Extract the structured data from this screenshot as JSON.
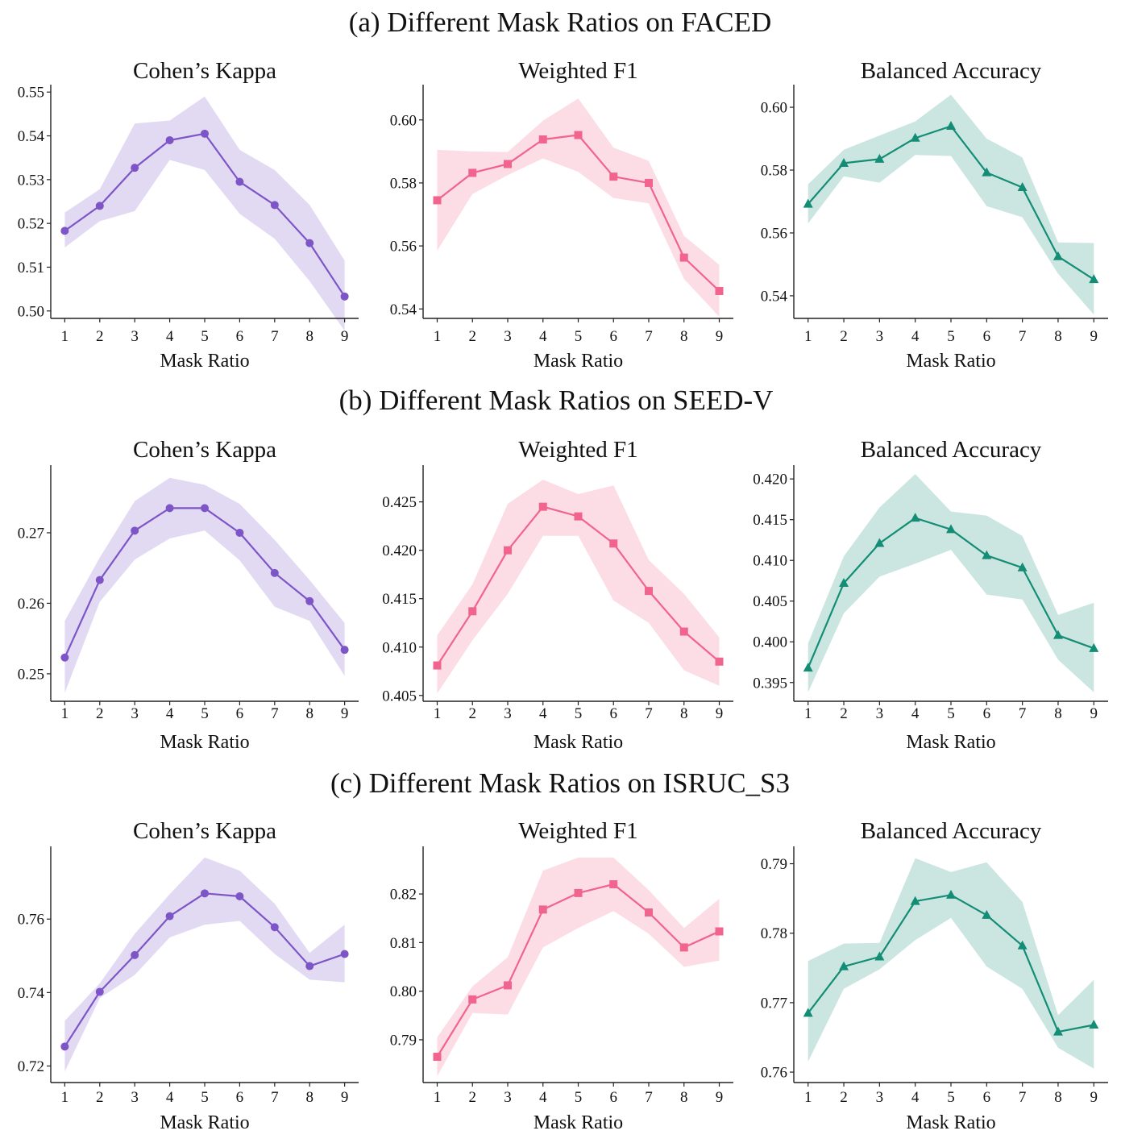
{
  "figure": {
    "x_label": "Mask Ratio",
    "colors": {
      "purple": "#7d55c7",
      "pink": "#f0648e",
      "teal": "#138d75"
    },
    "markers": {
      "purple": "circle",
      "pink": "square",
      "teal": "triangle"
    }
  },
  "chart_data": [
    {
      "section": "(a) Different Mask Ratios on FACED",
      "panels": [
        {
          "type": "line",
          "title": "Cohen’s Kappa",
          "xlabel": "Mask Ratio",
          "ylabel": "",
          "color": "purple",
          "marker": "circle",
          "x": [
            1,
            2,
            3,
            4,
            5,
            6,
            7,
            8,
            9
          ],
          "mean": [
            0.5183,
            0.524,
            0.5327,
            0.539,
            0.5405,
            0.5295,
            0.5242,
            0.5155,
            0.5033
          ],
          "lower": [
            0.5145,
            0.5205,
            0.5228,
            0.5345,
            0.5322,
            0.5222,
            0.5165,
            0.5068,
            0.4955
          ],
          "upper": [
            0.5225,
            0.5278,
            0.5428,
            0.5435,
            0.549,
            0.5368,
            0.5322,
            0.5242,
            0.5115
          ],
          "xlim": [
            0.6,
            9.4
          ],
          "ylim": [
            0.4983,
            0.5517
          ],
          "yticks": [
            0.5,
            0.51,
            0.52,
            0.53,
            0.54,
            0.55
          ],
          "ytick_labels": [
            "0.50",
            "0.51",
            "0.52",
            "0.53",
            "0.54",
            "0.55"
          ],
          "xtick_labels": [
            "1",
            "2",
            "3",
            "4",
            "5",
            "6",
            "7",
            "8",
            "9"
          ]
        },
        {
          "type": "line",
          "title": "Weighted F1",
          "xlabel": "Mask Ratio",
          "ylabel": "",
          "color": "pink",
          "marker": "square",
          "x": [
            1,
            2,
            3,
            4,
            5,
            6,
            7,
            8,
            9
          ],
          "mean": [
            0.5745,
            0.5832,
            0.586,
            0.5938,
            0.5952,
            0.582,
            0.58,
            0.5563,
            0.5457
          ],
          "lower": [
            0.5585,
            0.5765,
            0.5825,
            0.5878,
            0.5835,
            0.5752,
            0.5735,
            0.5495,
            0.5375
          ],
          "upper": [
            0.5905,
            0.59,
            0.5898,
            0.5998,
            0.6068,
            0.5912,
            0.587,
            0.5632,
            0.554
          ],
          "xlim": [
            0.6,
            9.4
          ],
          "ylim": [
            0.537,
            0.6112
          ],
          "yticks": [
            0.54,
            0.56,
            0.58,
            0.6
          ],
          "ytick_labels": [
            "0.54",
            "0.56",
            "0.58",
            "0.60"
          ],
          "xtick_labels": [
            "1",
            "2",
            "3",
            "4",
            "5",
            "6",
            "7",
            "8",
            "9"
          ]
        },
        {
          "type": "line",
          "title": "Balanced Accuracy",
          "xlabel": "Mask Ratio",
          "ylabel": "",
          "color": "teal",
          "marker": "triangle",
          "x": [
            1,
            2,
            3,
            4,
            5,
            6,
            7,
            8,
            9
          ],
          "mean": [
            0.5692,
            0.5822,
            0.5835,
            0.5902,
            0.594,
            0.5792,
            0.5745,
            0.5525,
            0.5452
          ],
          "lower": [
            0.563,
            0.578,
            0.576,
            0.5848,
            0.5845,
            0.5685,
            0.565,
            0.547,
            0.534
          ],
          "upper": [
            0.5755,
            0.5865,
            0.591,
            0.5955,
            0.604,
            0.59,
            0.584,
            0.557,
            0.5568
          ],
          "xlim": [
            0.6,
            9.4
          ],
          "ylim": [
            0.5328,
            0.6072
          ],
          "yticks": [
            0.54,
            0.56,
            0.58,
            0.6
          ],
          "ytick_labels": [
            "0.54",
            "0.56",
            "0.58",
            "0.60"
          ],
          "xtick_labels": [
            "1",
            "2",
            "3",
            "4",
            "5",
            "6",
            "7",
            "8",
            "9"
          ]
        }
      ]
    },
    {
      "section": "(b) Different Mask Ratios on SEED-V",
      "panels": [
        {
          "type": "line",
          "title": "Cohen’s Kappa",
          "xlabel": "Mask Ratio",
          "ylabel": "",
          "color": "purple",
          "marker": "circle",
          "x": [
            1,
            2,
            3,
            4,
            5,
            6,
            7,
            8,
            9
          ],
          "mean": [
            0.2523,
            0.2633,
            0.2703,
            0.2735,
            0.2735,
            0.27,
            0.2643,
            0.2603,
            0.2534
          ],
          "lower": [
            0.2473,
            0.2602,
            0.2662,
            0.2692,
            0.2703,
            0.2661,
            0.2595,
            0.2575,
            0.2497
          ],
          "upper": [
            0.2575,
            0.2665,
            0.2745,
            0.2778,
            0.2768,
            0.2741,
            0.269,
            0.2633,
            0.2572
          ],
          "xlim": [
            0.6,
            9.4
          ],
          "ylim": [
            0.2461,
            0.2796
          ],
          "yticks": [
            0.25,
            0.26,
            0.27
          ],
          "ytick_labels": [
            "0.25",
            "0.26",
            "0.27"
          ],
          "xtick_labels": [
            "1",
            "2",
            "3",
            "4",
            "5",
            "6",
            "7",
            "8",
            "9"
          ]
        },
        {
          "type": "line",
          "title": "Weighted F1",
          "xlabel": "Mask Ratio",
          "ylabel": "",
          "color": "pink",
          "marker": "square",
          "x": [
            1,
            2,
            3,
            4,
            5,
            6,
            7,
            8,
            9
          ],
          "mean": [
            0.4081,
            0.4137,
            0.42,
            0.4245,
            0.4235,
            0.4207,
            0.4158,
            0.4116,
            0.4085
          ],
          "lower": [
            0.4052,
            0.4107,
            0.4155,
            0.4215,
            0.4215,
            0.4148,
            0.4125,
            0.4076,
            0.406
          ],
          "upper": [
            0.4112,
            0.4165,
            0.4248,
            0.4273,
            0.4258,
            0.4267,
            0.419,
            0.4155,
            0.411
          ],
          "xlim": [
            0.6,
            9.4
          ],
          "ylim": [
            0.4044,
            0.4288
          ],
          "yticks": [
            0.405,
            0.41,
            0.415,
            0.42,
            0.425
          ],
          "ytick_labels": [
            "0.405",
            "0.410",
            "0.415",
            "0.420",
            "0.425"
          ],
          "xtick_labels": [
            "1",
            "2",
            "3",
            "4",
            "5",
            "6",
            "7",
            "8",
            "9"
          ]
        },
        {
          "type": "line",
          "title": "Balanced Accuracy",
          "xlabel": "Mask Ratio",
          "ylabel": "",
          "color": "teal",
          "marker": "triangle",
          "x": [
            1,
            2,
            3,
            4,
            5,
            6,
            7,
            8,
            9
          ],
          "mean": [
            0.3968,
            0.4072,
            0.4121,
            0.4152,
            0.4138,
            0.4106,
            0.4091,
            0.4008,
            0.3992
          ],
          "lower": [
            0.3938,
            0.4035,
            0.408,
            0.4096,
            0.4113,
            0.4058,
            0.4052,
            0.3978,
            0.3938
          ],
          "upper": [
            0.3998,
            0.4105,
            0.4165,
            0.4206,
            0.416,
            0.4155,
            0.413,
            0.4033,
            0.4048
          ],
          "xlim": [
            0.6,
            9.4
          ],
          "ylim": [
            0.3927,
            0.4217
          ],
          "yticks": [
            0.395,
            0.4,
            0.405,
            0.41,
            0.415,
            0.42
          ],
          "ytick_labels": [
            "0.395",
            "0.400",
            "0.405",
            "0.410",
            "0.415",
            "0.420"
          ],
          "xtick_labels": [
            "1",
            "2",
            "3",
            "4",
            "5",
            "6",
            "7",
            "8",
            "9"
          ]
        }
      ]
    },
    {
      "section": "(c) Different Mask Ratios on ISRUC_S3",
      "panels": [
        {
          "type": "line",
          "title": "Cohen’s Kappa",
          "xlabel": "Mask Ratio",
          "ylabel": "",
          "color": "purple",
          "marker": "circle",
          "x": [
            1,
            2,
            3,
            4,
            5,
            6,
            7,
            8,
            9
          ],
          "mean": [
            0.7253,
            0.7402,
            0.7502,
            0.7608,
            0.767,
            0.7662,
            0.7578,
            0.7472,
            0.7505
          ],
          "lower": [
            0.7185,
            0.7385,
            0.7448,
            0.755,
            0.7585,
            0.7595,
            0.7505,
            0.7435,
            0.7428
          ],
          "upper": [
            0.7323,
            0.7425,
            0.756,
            0.7668,
            0.7768,
            0.7732,
            0.7642,
            0.7508,
            0.7585
          ],
          "xlim": [
            0.6,
            9.4
          ],
          "ylim": [
            0.7155,
            0.7798
          ],
          "yticks": [
            0.72,
            0.74,
            0.76
          ],
          "ytick_labels": [
            "0.72",
            "0.74",
            "0.76"
          ],
          "xtick_labels": [
            "1",
            "2",
            "3",
            "4",
            "5",
            "6",
            "7",
            "8",
            "9"
          ]
        },
        {
          "type": "line",
          "title": "Weighted F1",
          "xlabel": "Mask Ratio",
          "ylabel": "",
          "color": "pink",
          "marker": "square",
          "x": [
            1,
            2,
            3,
            4,
            5,
            6,
            7,
            8,
            9
          ],
          "mean": [
            0.7865,
            0.7983,
            0.8012,
            0.8168,
            0.8202,
            0.822,
            0.8162,
            0.809,
            0.8123
          ],
          "lower": [
            0.7825,
            0.7955,
            0.7952,
            0.809,
            0.813,
            0.8165,
            0.8118,
            0.805,
            0.8063
          ],
          "upper": [
            0.7905,
            0.801,
            0.807,
            0.8248,
            0.8275,
            0.8275,
            0.8208,
            0.813,
            0.819
          ],
          "xlim": [
            0.6,
            9.4
          ],
          "ylim": [
            0.7812,
            0.8298
          ],
          "yticks": [
            0.79,
            0.8,
            0.81,
            0.82
          ],
          "ytick_labels": [
            "0.79",
            "0.80",
            "0.81",
            "0.82"
          ],
          "xtick_labels": [
            "1",
            "2",
            "3",
            "4",
            "5",
            "6",
            "7",
            "8",
            "9"
          ]
        },
        {
          "type": "line",
          "title": "Balanced Accuracy",
          "xlabel": "Mask Ratio",
          "ylabel": "",
          "color": "teal",
          "marker": "triangle",
          "x": [
            1,
            2,
            3,
            4,
            5,
            6,
            7,
            8,
            9
          ],
          "mean": [
            0.7685,
            0.7752,
            0.7766,
            0.7846,
            0.7855,
            0.7826,
            0.7782,
            0.7658,
            0.7668
          ],
          "lower": [
            0.7615,
            0.772,
            0.7748,
            0.779,
            0.7822,
            0.7752,
            0.772,
            0.7635,
            0.7605
          ],
          "upper": [
            0.776,
            0.7785,
            0.7786,
            0.7908,
            0.7888,
            0.7902,
            0.7845,
            0.7682,
            0.7733
          ],
          "xlim": [
            0.6,
            9.4
          ],
          "ylim": [
            0.7585,
            0.7925
          ],
          "yticks": [
            0.76,
            0.77,
            0.78,
            0.79
          ],
          "ytick_labels": [
            "0.76",
            "0.77",
            "0.78",
            "0.79"
          ],
          "xtick_labels": [
            "1",
            "2",
            "3",
            "4",
            "5",
            "6",
            "7",
            "8",
            "9"
          ]
        }
      ]
    }
  ]
}
